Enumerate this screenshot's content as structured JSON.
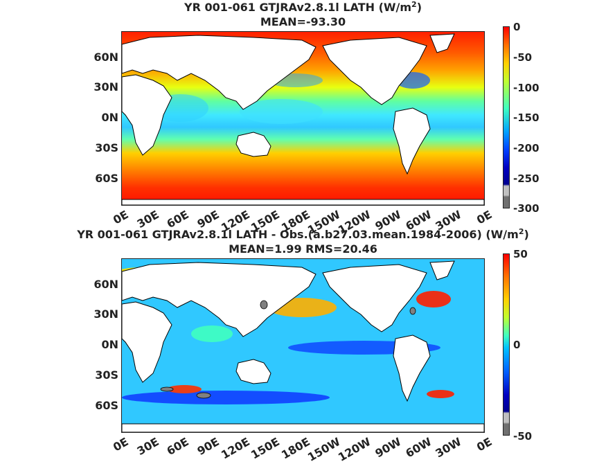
{
  "panels": [
    {
      "title_line1": "YR 001-061 GTJRAv2.8.1l  LATH (W/m",
      "title_sup": "2",
      "title_close": ")",
      "title_line2": "MEAN=-93.30",
      "colorbar_ticks": [
        "0",
        "-50",
        "-100",
        "-150",
        "-200",
        "-250",
        "-300"
      ],
      "range": [
        -300,
        0
      ]
    },
    {
      "title_line1": "YR 001-061 GTJRAv2.8.1l LATH - Obs.(a.b27.03.mean.1984-2006) (W/m",
      "title_sup": "2",
      "title_close": ")",
      "title_line2": "MEAN=1.99 RMS=20.46",
      "colorbar_ticks": [
        "50",
        "0",
        "-50"
      ],
      "range": [
        -50,
        50
      ]
    }
  ],
  "y_ticks": [
    "60N",
    "30N",
    "0N",
    "30S",
    "60S"
  ],
  "x_ticks": [
    "0E",
    "30E",
    "60E",
    "90E",
    "120E",
    "150E",
    "180E",
    "150W",
    "120W",
    "90W",
    "60W",
    "30W",
    "0E"
  ],
  "colors": {
    "land": "#ffffff",
    "coast": "#000000",
    "jet_low": "#00008f",
    "jet_high": "#800000",
    "missing": "#808080"
  }
}
